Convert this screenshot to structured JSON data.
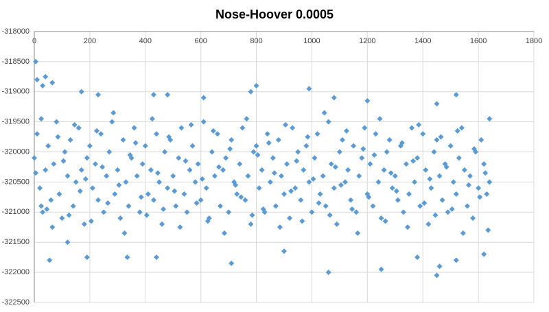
{
  "chart_data": {
    "type": "scatter",
    "title": "Nose-Hoover 0.0005",
    "xlim": [
      0,
      1800
    ],
    "xticks": [
      0,
      200,
      400,
      600,
      800,
      1000,
      1200,
      1400,
      1600,
      1800
    ],
    "ylim": [
      -322500,
      -318000
    ],
    "yticks": [
      -318000,
      -318500,
      -319000,
      -319500,
      -320000,
      -320500,
      -321000,
      -321500,
      -322000,
      -322500
    ],
    "grid": true,
    "series": [
      {
        "color": "#5b9bd5",
        "x": [
          0,
          10,
          20,
          30,
          40,
          50,
          60,
          70,
          80,
          90,
          100,
          110,
          120,
          130,
          140,
          150,
          160,
          170,
          180,
          190,
          200,
          210,
          220,
          230,
          240,
          250,
          260,
          270,
          280,
          290,
          300,
          310,
          320,
          330,
          340,
          350,
          360,
          370,
          380,
          390,
          400,
          410,
          420,
          430,
          440,
          450,
          460,
          470,
          480,
          490,
          500,
          510,
          520,
          530,
          540,
          550,
          560,
          570,
          580,
          590,
          600,
          610,
          620,
          630,
          640,
          650,
          660,
          670,
          680,
          690,
          700,
          710,
          720,
          730,
          740,
          750,
          760,
          770,
          780,
          790,
          800,
          810,
          820,
          830,
          840,
          850,
          860,
          870,
          880,
          890,
          900,
          910,
          920,
          930,
          940,
          950,
          960,
          970,
          980,
          990,
          1000,
          1010,
          1020,
          1030,
          1040,
          1050,
          1060,
          1070,
          1080,
          1090,
          1100,
          1110,
          1120,
          1130,
          1140,
          1150,
          1160,
          1170,
          1180,
          1190,
          1200,
          1210,
          1220,
          1230,
          1240,
          1250,
          1260,
          1270,
          1280,
          1290,
          1300,
          1310,
          1320,
          1330,
          1340,
          1350,
          1360,
          1370,
          1380,
          1390,
          1400,
          1410,
          1420,
          1430,
          1440,
          1450,
          1460,
          1470,
          1480,
          1490,
          1500,
          1510,
          1520,
          1530,
          1540,
          1550,
          1560,
          1570,
          1580,
          1590,
          1600,
          1610,
          1620,
          1630,
          1640,
          5,
          25,
          45,
          65,
          85,
          105,
          125,
          145,
          165,
          185,
          205,
          225,
          245,
          265,
          285,
          305,
          325,
          345,
          365,
          385,
          405,
          425,
          445,
          465,
          485,
          505,
          525,
          545,
          565,
          585,
          605,
          625,
          645,
          665,
          685,
          705,
          725,
          745,
          765,
          785,
          805,
          825,
          845,
          865,
          885,
          905,
          925,
          945,
          965,
          985,
          1005,
          1025,
          1045,
          1065,
          1085,
          1105,
          1125,
          1145,
          1165,
          1185,
          1205,
          1225,
          1245,
          1265,
          1285,
          1305,
          1325,
          1345,
          1365,
          1385,
          1405,
          1425,
          1445,
          1465,
          1485,
          1505,
          1525,
          1545,
          1565,
          1585,
          1605,
          1625,
          5,
          10,
          40,
          65,
          30,
          170,
          230,
          430,
          480,
          610,
          800,
          780,
          990,
          1080,
          1200,
          1450,
          1520,
          1640,
          55,
          190,
          335,
          440,
          710,
          1060,
          1250,
          1450,
          1460,
          1520,
          1620,
          1380,
          900,
          120,
          25,
          1635
        ],
        "values": [
          -320100,
          -319700,
          -320600,
          -321000,
          -320300,
          -319900,
          -320800,
          -320200,
          -319500,
          -320700,
          -321100,
          -320000,
          -320400,
          -319800,
          -320900,
          -320500,
          -319600,
          -320300,
          -321200,
          -320100,
          -319900,
          -320600,
          -320200,
          -320800,
          -319700,
          -321000,
          -320400,
          -320000,
          -319500,
          -320700,
          -320300,
          -321100,
          -319800,
          -320500,
          -320900,
          -320100,
          -319600,
          -320400,
          -321000,
          -320200,
          -319900,
          -320700,
          -320300,
          -320800,
          -319700,
          -320500,
          -321200,
          -320000,
          -320600,
          -319800,
          -320400,
          -320900,
          -320100,
          -319600,
          -320700,
          -321000,
          -320300,
          -319900,
          -320500,
          -320200,
          -320800,
          -319500,
          -320600,
          -321100,
          -320000,
          -320400,
          -319700,
          -320900,
          -320300,
          -320100,
          -321000,
          -319800,
          -320500,
          -320700,
          -320200,
          -319600,
          -320800,
          -320400,
          -321200,
          -320000,
          -319900,
          -320600,
          -320300,
          -321000,
          -319700,
          -320500,
          -320100,
          -320900,
          -319800,
          -320400,
          -320700,
          -320200,
          -321100,
          -319600,
          -320600,
          -320000,
          -320800,
          -320300,
          -319900,
          -320500,
          -321000,
          -320100,
          -319700,
          -320700,
          -320400,
          -320900,
          -319500,
          -320200,
          -320600,
          -321200,
          -320000,
          -319800,
          -320500,
          -320300,
          -320800,
          -319900,
          -321000,
          -320400,
          -320100,
          -319600,
          -320700,
          -320200,
          -320900,
          -319700,
          -320500,
          -321100,
          -320300,
          -320000,
          -319800,
          -320600,
          -320400,
          -320800,
          -319900,
          -321000,
          -320200,
          -320700,
          -319600,
          -320500,
          -320100,
          -320900,
          -319700,
          -320300,
          -321200,
          -320600,
          -320000,
          -319800,
          -320400,
          -320800,
          -320200,
          -321000,
          -319900,
          -320500,
          -320700,
          -320100,
          -319600,
          -320300,
          -320900,
          -320400,
          -321100,
          -320000,
          -320600,
          -319800,
          -320200,
          -320700,
          -320500,
          -320350,
          -319450,
          -320950,
          -321250,
          -319750,
          -320150,
          -321050,
          -319550,
          -320650,
          -320450,
          -321150,
          -319650,
          -320250,
          -320850,
          -319350,
          -320550,
          -321350,
          -320050,
          -319850,
          -320750,
          -321050,
          -319450,
          -320350,
          -320950,
          -319750,
          -320650,
          -321250,
          -320150,
          -319550,
          -320850,
          -320450,
          -321150,
          -319650,
          -320250,
          -321350,
          -319950,
          -320550,
          -320750,
          -319450,
          -321050,
          -320050,
          -320950,
          -319850,
          -320350,
          -321250,
          -319550,
          -320650,
          -320150,
          -321150,
          -319750,
          -320450,
          -320850,
          -319350,
          -321050,
          -320250,
          -320550,
          -319650,
          -320950,
          -321350,
          -319950,
          -320750,
          -320050,
          -319450,
          -321150,
          -320350,
          -320650,
          -319850,
          -321250,
          -320150,
          -319550,
          -320850,
          -320450,
          -321050,
          -319750,
          -320250,
          -320950,
          -319650,
          -321350,
          -320550,
          -319950,
          -320750,
          -320350,
          -318500,
          -318800,
          -318750,
          -318850,
          -318900,
          -319000,
          -319050,
          -319050,
          -319050,
          -319100,
          -318900,
          -319000,
          -318950,
          -319100,
          -319150,
          -319200,
          -319050,
          -319450,
          -321800,
          -321750,
          -321750,
          -321750,
          -321850,
          -322000,
          -321950,
          -322050,
          -321900,
          -321800,
          -321700,
          -321750,
          -321650,
          -321500,
          -320900,
          -321300
        ]
      }
    ]
  }
}
